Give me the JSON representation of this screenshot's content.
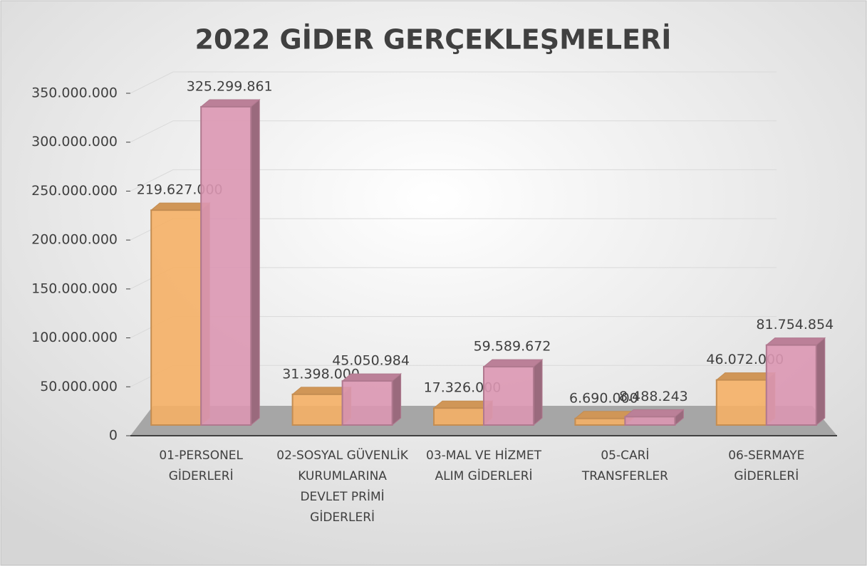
{
  "chart_data": {
    "type": "bar3d",
    "title": "2022 GİDER GERÇEKLEŞMELERİ",
    "categories": [
      "01-PERSONEL GİDERLERİ",
      "02-SOSYAL GÜVENLİK KURUMLARINA DEVLET PRİMİ GİDERLERİ",
      "03-MAL VE HİZMET ALIM GİDERLERİ",
      "05-CARİ TRANSFERLER",
      "06-SERMAYE GİDERLERİ"
    ],
    "series": [
      {
        "color": "#f5b066",
        "values": [
          219627000,
          31398000,
          17326000,
          6690000,
          46072000
        ],
        "value_labels": [
          "219.627.000",
          "31.398.000",
          "17.326.000",
          "6.690.000",
          "46.072.000"
        ]
      },
      {
        "color": "#dc97b3",
        "values": [
          325299861,
          45050984,
          59589672,
          8488243,
          81754854
        ],
        "value_labels": [
          "325.299.861",
          "45.050.984",
          "59.589.672",
          "8.488.243",
          "81.754.854"
        ]
      }
    ],
    "ylim": [
      0,
      350000000
    ],
    "yticks": [
      0,
      {
        "value": 50000000,
        "label": "50.000.000"
      },
      {
        "value": 100000000,
        "label": "100.000.000"
      },
      {
        "value": 150000000,
        "label": "150.000.000"
      },
      {
        "value": 200000000,
        "label": "200.000.000"
      },
      {
        "value": 250000000,
        "label": "250.000.000"
      },
      {
        "value": 300000000,
        "label": "300.000.000"
      },
      {
        "value": 350000000,
        "label": "350.000.000"
      }
    ],
    "grid": true
  }
}
